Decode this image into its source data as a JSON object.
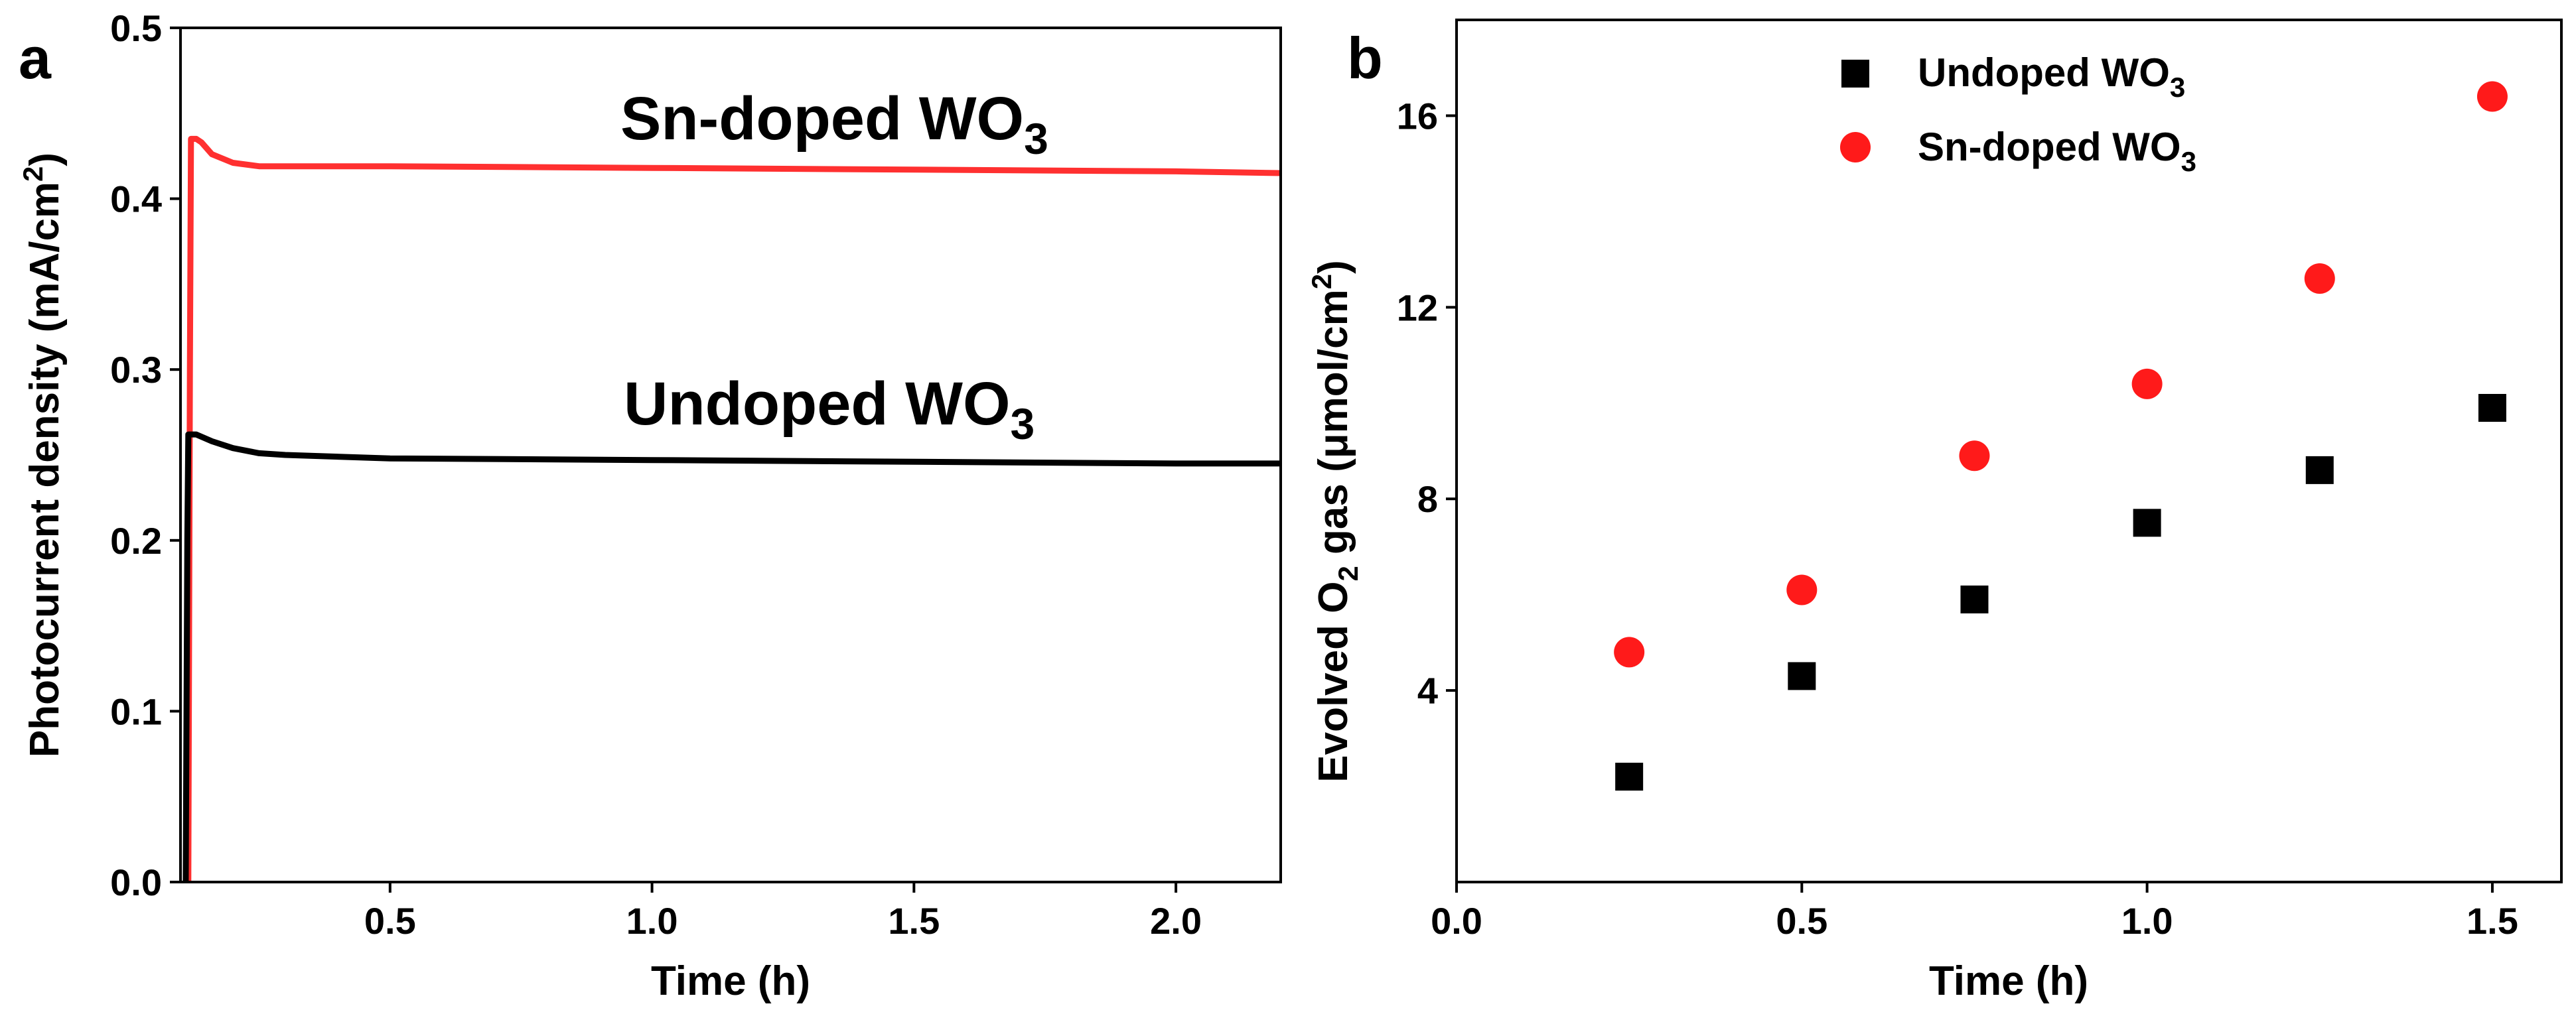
{
  "chart_data": [
    {
      "type": "line",
      "panel_label": "a",
      "xlabel": "Time (h)",
      "ylabel_main": "Photocurrent density (mA/cm",
      "ylabel_sup": "2",
      "ylabel_end": ")",
      "xlim": [
        0.1,
        2.2
      ],
      "ylim": [
        0.0,
        0.5
      ],
      "xticks": [
        0.5,
        1.0,
        1.5,
        2.0
      ],
      "xtick_labels": [
        "0.5",
        "1.0",
        "1.5",
        "2.0"
      ],
      "yticks": [
        0.0,
        0.1,
        0.2,
        0.3,
        0.4,
        0.5
      ],
      "ytick_labels": [
        "0.0",
        "0.1",
        "0.2",
        "0.3",
        "0.4",
        "0.5"
      ],
      "series": [
        {
          "name": "Sn-doped WO3",
          "color": "#ff3030",
          "x": [
            0.115,
            0.118,
            0.12,
            0.13,
            0.14,
            0.16,
            0.2,
            0.25,
            0.3,
            0.5,
            1.0,
            1.5,
            2.0,
            2.2
          ],
          "y": [
            0.0,
            0.3,
            0.435,
            0.435,
            0.433,
            0.426,
            0.421,
            0.419,
            0.419,
            0.419,
            0.418,
            0.417,
            0.416,
            0.415
          ]
        },
        {
          "name": "Undoped WO3",
          "color": "#000000",
          "x": [
            0.11,
            0.113,
            0.115,
            0.13,
            0.16,
            0.2,
            0.25,
            0.3,
            0.5,
            1.0,
            1.5,
            2.0,
            2.2
          ],
          "y": [
            0.0,
            0.2,
            0.262,
            0.262,
            0.258,
            0.254,
            0.251,
            0.25,
            0.248,
            0.247,
            0.246,
            0.245,
            0.245
          ]
        }
      ],
      "annotations": [
        {
          "id": "sn",
          "main": "Sn-doped WO",
          "sub": "3"
        },
        {
          "id": "un",
          "main": "Undoped WO",
          "sub": "3"
        }
      ]
    },
    {
      "type": "scatter",
      "panel_label": "b",
      "xlabel": "Time (h)",
      "ylabel_pre": "Evolved O",
      "ylabel_sub": "2",
      "ylabel_mid": " gas (μmol/cm",
      "ylabel_sup": "2",
      "ylabel_end": ")",
      "xlim": [
        0.0,
        1.6
      ],
      "ylim": [
        0.0,
        18.0
      ],
      "xticks": [
        0.0,
        0.5,
        1.0,
        1.5
      ],
      "xtick_labels": [
        "0.0",
        "0.5",
        "1.0",
        "1.5"
      ],
      "yticks": [
        4,
        8,
        12,
        16
      ],
      "ytick_labels": [
        "4",
        "8",
        "12",
        "16"
      ],
      "series": [
        {
          "name": "Undoped WO3",
          "legend_main": "Undoped WO",
          "legend_sub": "3",
          "marker": "square",
          "color": "#000000",
          "x": [
            0.25,
            0.5,
            0.75,
            1.0,
            1.25,
            1.5
          ],
          "y": [
            2.2,
            4.3,
            5.9,
            7.5,
            8.6,
            9.9
          ]
        },
        {
          "name": "Sn-doped WO3",
          "legend_main": "Sn-doped WO",
          "legend_sub": "3",
          "marker": "circle",
          "color": "#ff1a1a",
          "x": [
            0.25,
            0.5,
            0.75,
            1.0,
            1.25,
            1.5
          ],
          "y": [
            4.8,
            6.1,
            8.9,
            10.4,
            12.6,
            16.4
          ]
        }
      ],
      "legend_position": "top-center"
    }
  ]
}
